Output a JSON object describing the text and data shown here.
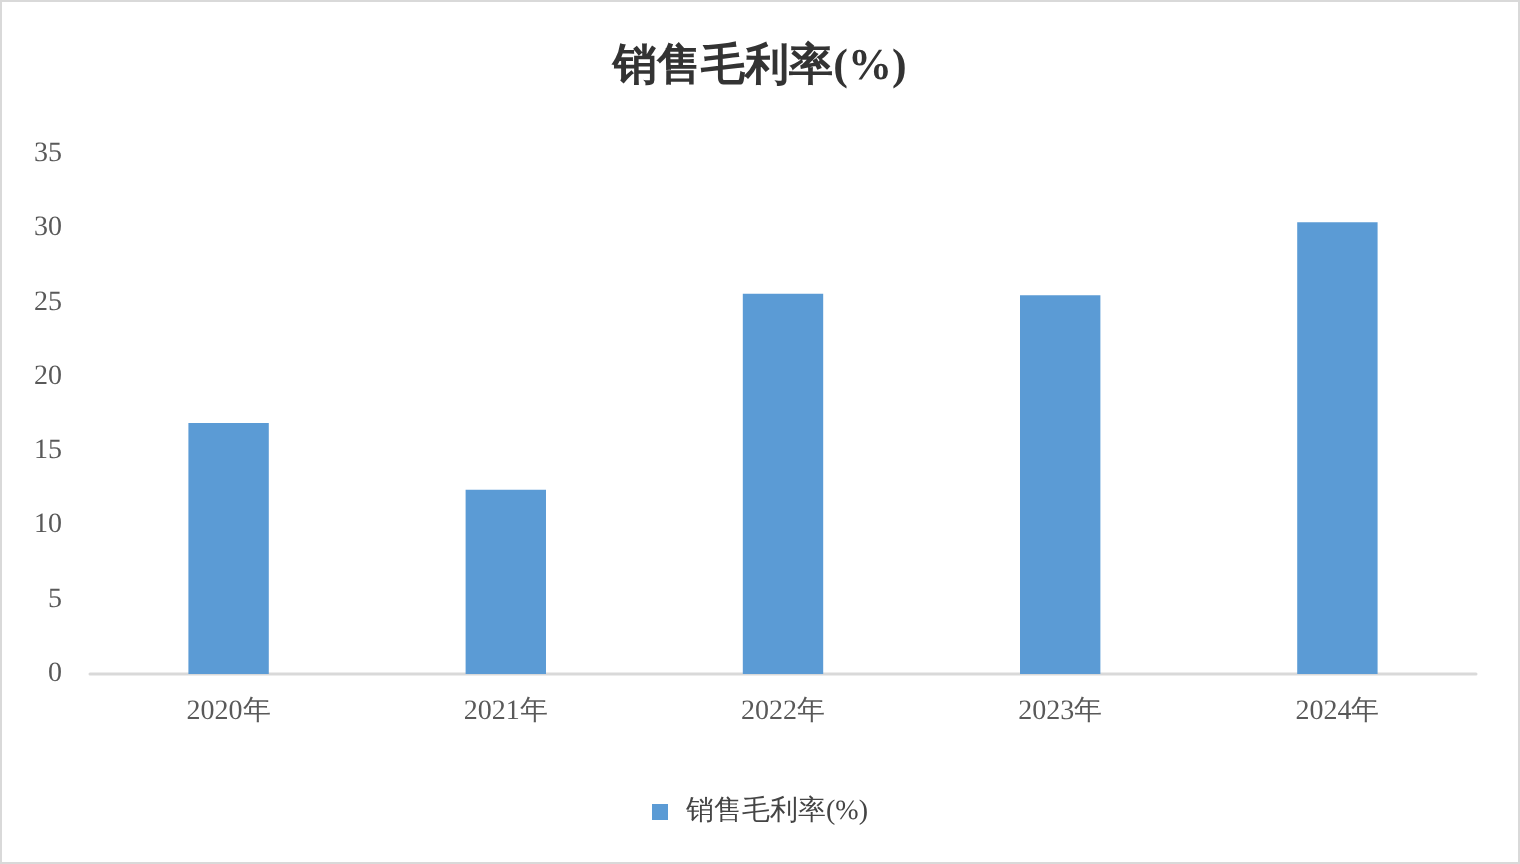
{
  "chart_data": {
    "type": "bar",
    "title": "销售毛利率(%)",
    "categories": [
      "2020年",
      "2021年",
      "2022年",
      "2023年",
      "2024年"
    ],
    "series": [
      {
        "name": "销售毛利率(%)",
        "color": "#5b9bd5",
        "values": [
          16.9,
          12.4,
          25.6,
          25.5,
          30.4
        ]
      }
    ],
    "ylim": [
      0,
      35
    ],
    "yticks": [
      0,
      5,
      10,
      15,
      20,
      25,
      30,
      35
    ],
    "grid": false,
    "legend": "bottom"
  }
}
